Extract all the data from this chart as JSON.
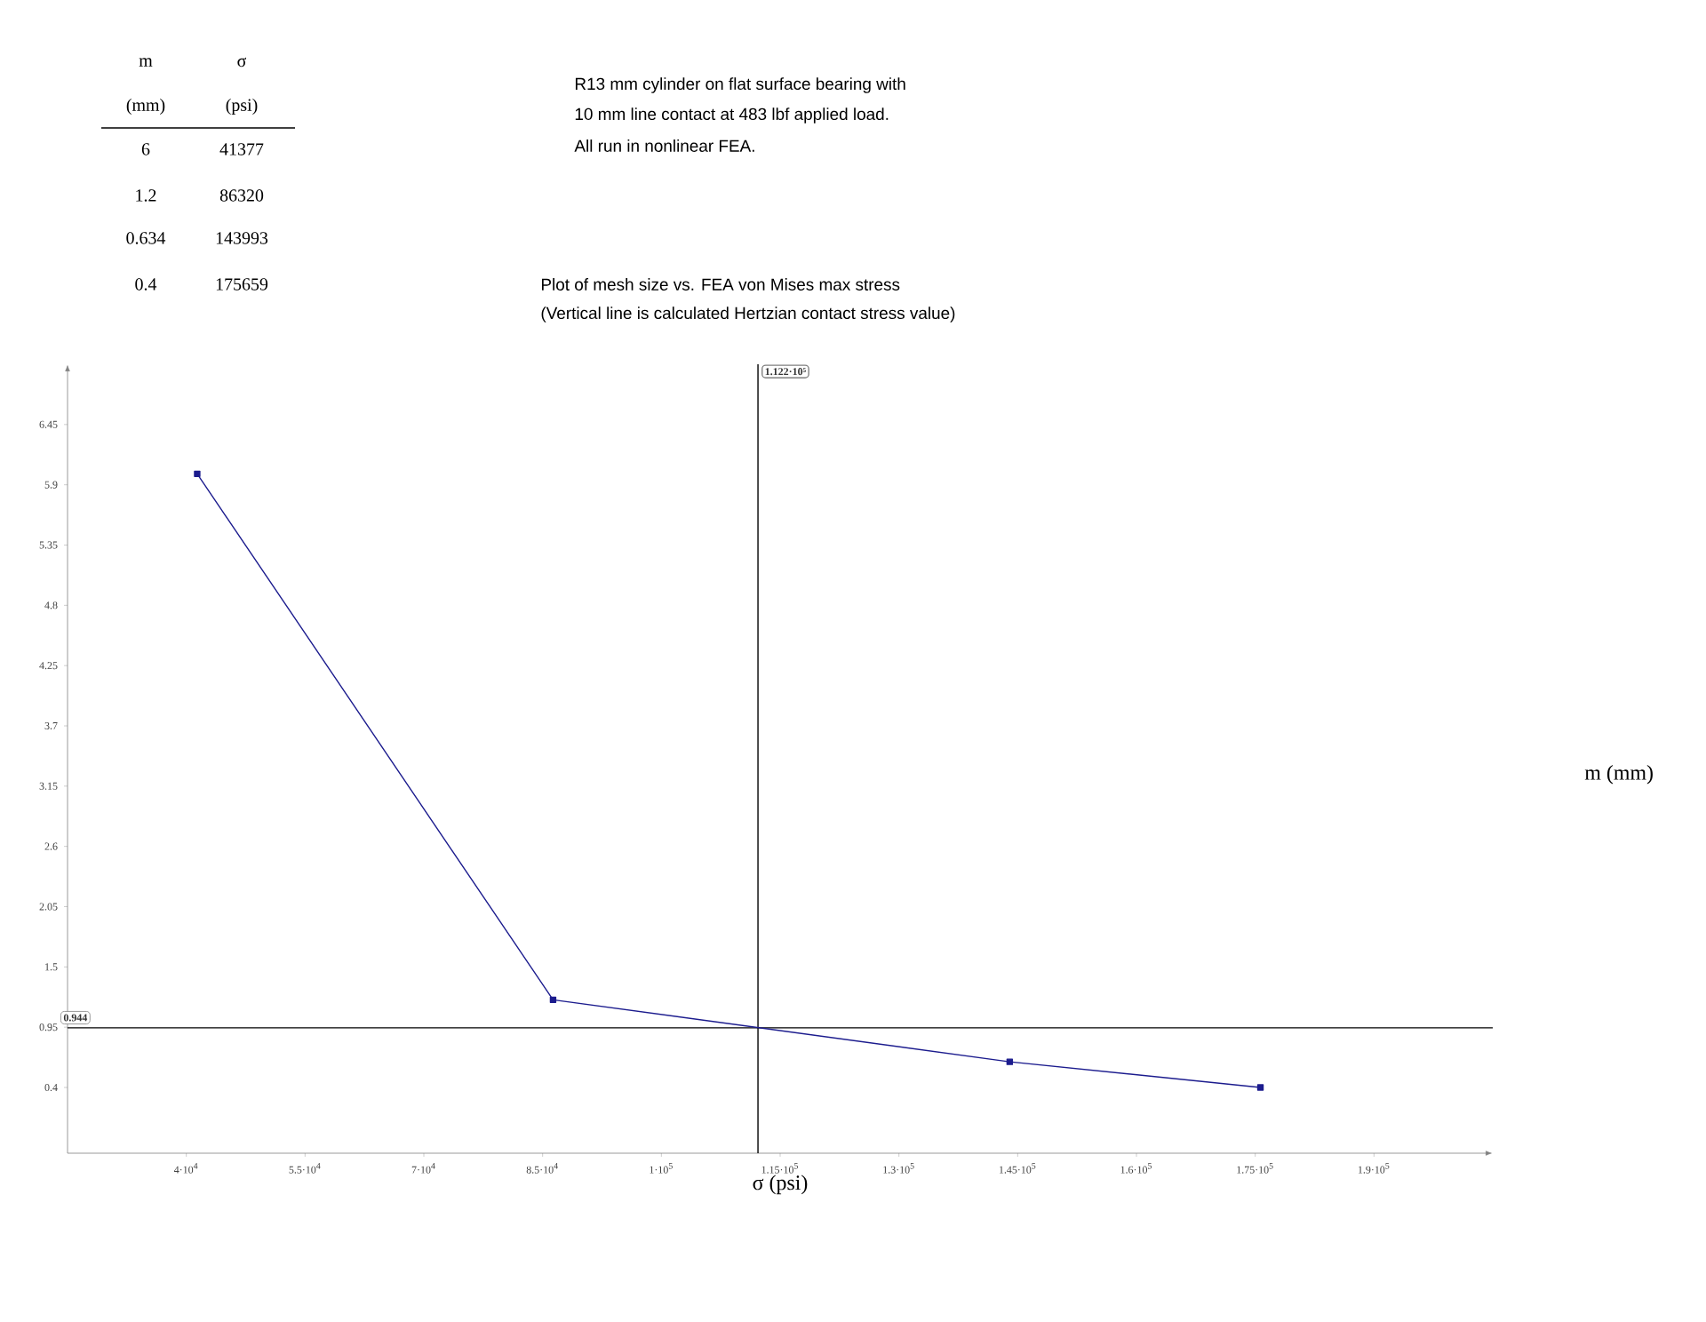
{
  "chart_data": {
    "type": "line",
    "title": "Plot of mesh size vs. FEA von Mises max stress",
    "subtitle": "(Vertical line is calculated Hertzian contact stress value)",
    "xlabel": "σ (psi)",
    "ylabel": "m (mm)",
    "annotations": [
      "R13 mm cylinder on flat surface bearing with",
      "10 mm line contact at 483 lbf applied load.",
      "All run in nonlinear FEA.",
      "m",
      "σ",
      "(mm)",
      "(psi)",
      "6",
      "41377",
      "1.2",
      "86320",
      "0.634",
      "143993",
      "0.4",
      "175659"
    ],
    "series": [
      {
        "color": "#1c1c8e",
        "x": [
          41377,
          86320,
          143993,
          175659
        ],
        "values": [
          6,
          1.2,
          0.634,
          0.4
        ]
      }
    ],
    "xlim": [
      25000,
      205000
    ],
    "ylim": [
      -0.2,
      7.0
    ],
    "xticks": [
      {
        "value": 40000,
        "label": "4·10$^{4}$"
      },
      {
        "value": 55000,
        "label": "5.5·10$^{4}$"
      },
      {
        "value": 70000,
        "label": "7·10$^{4}$"
      },
      {
        "value": 85000,
        "label": "8.5·10$^{4}$"
      },
      {
        "value": 100000,
        "label": "1·10$^{5}$"
      },
      {
        "value": 115000,
        "label": "1.15·10$^{5}$"
      },
      {
        "value": 130000,
        "label": "1.3·10$^{5}$"
      },
      {
        "value": 145000,
        "label": "1.45·10$^{5}$"
      },
      {
        "value": 160000,
        "label": "1.6·10$^{5}$"
      },
      {
        "value": 175000,
        "label": "1.75·10$^{5}$"
      },
      {
        "value": 190000,
        "label": "1.9·10$^{5}$"
      }
    ],
    "yticks": [
      0.4,
      0.95,
      1.5,
      2.05,
      2.6,
      3.15,
      3.7,
      4.25,
      4.8,
      5.35,
      5.9,
      6.45
    ],
    "ref_lines": [
      {
        "axis": "x",
        "value": 112200,
        "label": "1.122·10⁵",
        "color": "#000000"
      },
      {
        "axis": "y",
        "value": 0.944,
        "label": "0.944",
        "color": "#000000"
      }
    ],
    "marker": "square",
    "line_style": "solid"
  }
}
